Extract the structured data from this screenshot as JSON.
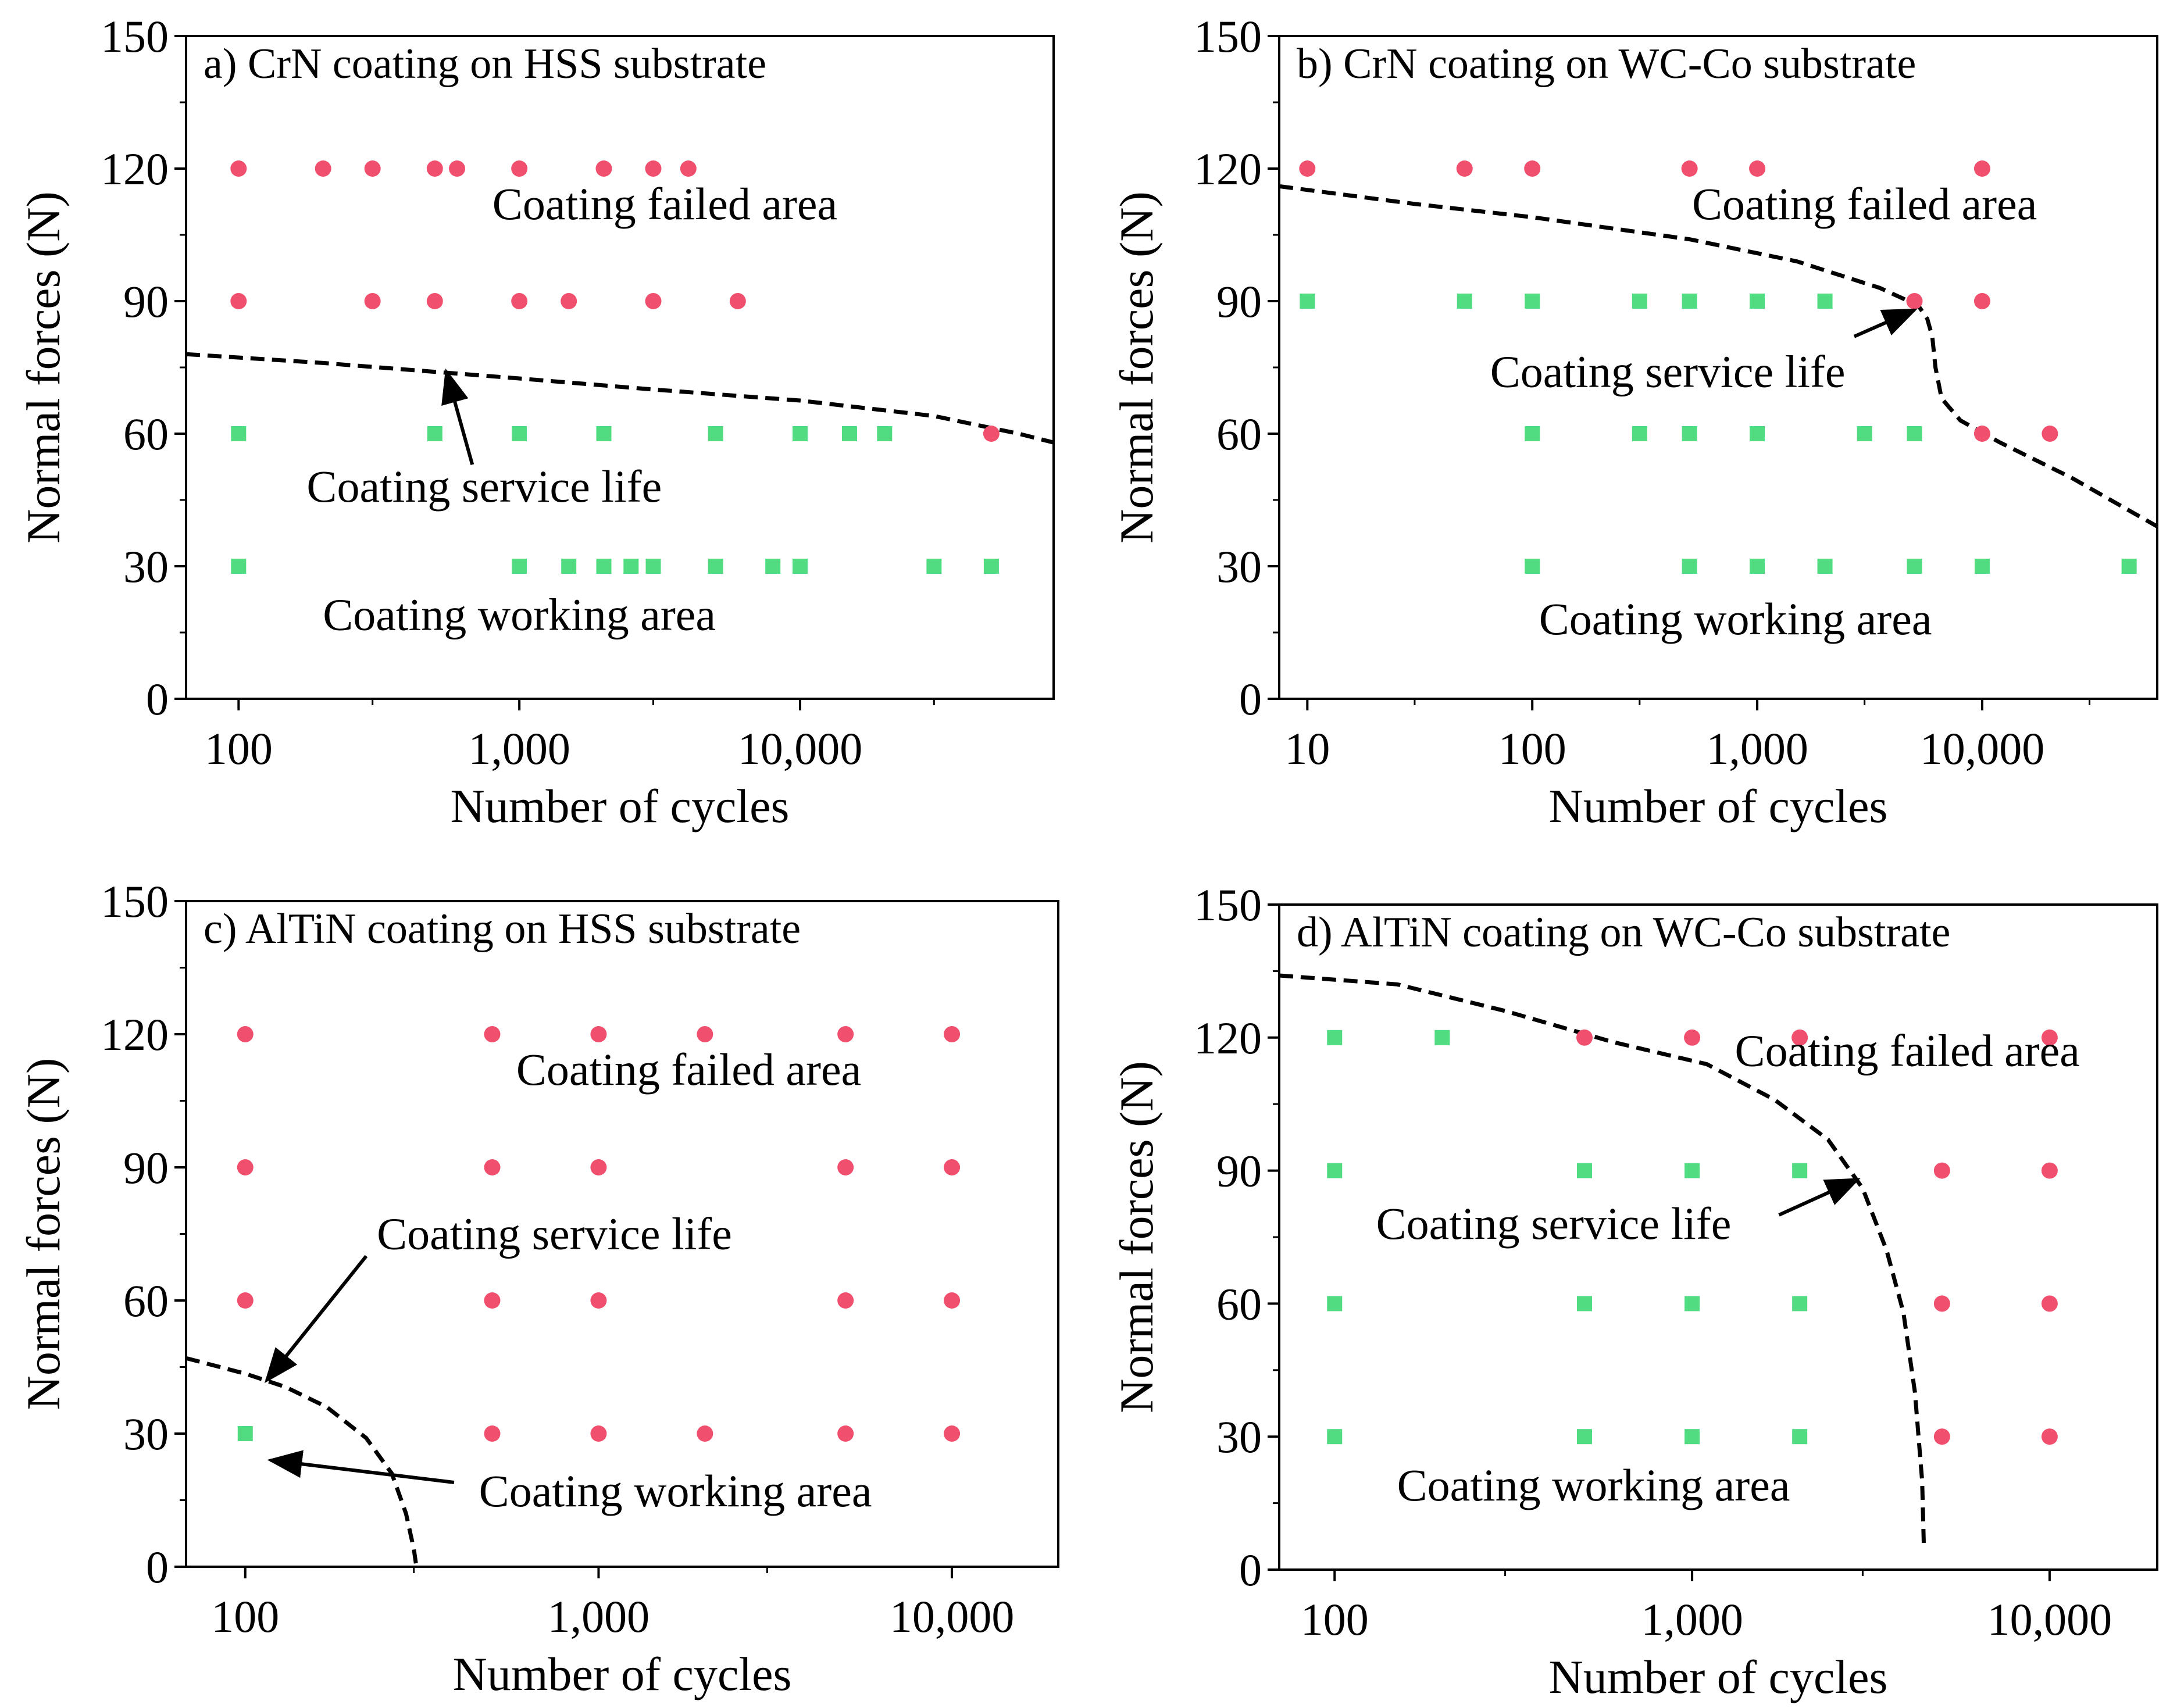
{
  "colors": {
    "failed": "#f0506e",
    "working": "#52dc82",
    "curve": "#000000"
  },
  "chart_data": [
    {
      "type": "scatter",
      "id": "a",
      "title": "a) CrN coating on HSS substrate",
      "xlabel": "Number of cycles",
      "ylabel": "Normal forces (N)",
      "xscale": "log",
      "xlim": [
        65,
        80000
      ],
      "ylim": [
        0,
        150
      ],
      "xticks": [
        {
          "value": 100,
          "label": "100"
        },
        {
          "value": 1000,
          "label": "1,000"
        },
        {
          "value": 10000,
          "label": "10,000"
        }
      ],
      "yticks": [
        {
          "value": 0,
          "label": "0"
        },
        {
          "value": 30,
          "label": "30"
        },
        {
          "value": 60,
          "label": "60"
        },
        {
          "value": 90,
          "label": "90"
        },
        {
          "value": 120,
          "label": "120"
        },
        {
          "value": 150,
          "label": "150"
        }
      ],
      "series": [
        {
          "name": "failed",
          "marker": "circle",
          "points": [
            [
              100,
              120
            ],
            [
              200,
              120
            ],
            [
              300,
              120
            ],
            [
              500,
              120
            ],
            [
              600,
              120
            ],
            [
              1000,
              120
            ],
            [
              2000,
              120
            ],
            [
              3000,
              120
            ],
            [
              4000,
              120
            ],
            [
              100,
              90
            ],
            [
              300,
              90
            ],
            [
              500,
              90
            ],
            [
              1000,
              90
            ],
            [
              1500,
              90
            ],
            [
              3000,
              90
            ],
            [
              6000,
              90
            ],
            [
              48000,
              60
            ]
          ]
        },
        {
          "name": "working",
          "marker": "square",
          "points": [
            [
              100,
              60
            ],
            [
              500,
              60
            ],
            [
              1000,
              60
            ],
            [
              2000,
              60
            ],
            [
              5000,
              60
            ],
            [
              10000,
              60
            ],
            [
              15000,
              60
            ],
            [
              20000,
              60
            ],
            [
              100,
              30
            ],
            [
              1000,
              30
            ],
            [
              1500,
              30
            ],
            [
              2000,
              30
            ],
            [
              2500,
              30
            ],
            [
              3000,
              30
            ],
            [
              5000,
              30
            ],
            [
              8000,
              30
            ],
            [
              10000,
              30
            ],
            [
              30000,
              30
            ],
            [
              48000,
              30
            ]
          ]
        }
      ],
      "curve": [
        [
          65,
          78
        ],
        [
          200,
          76
        ],
        [
          500,
          74
        ],
        [
          1000,
          72.5
        ],
        [
          3000,
          70
        ],
        [
          10000,
          67.5
        ],
        [
          30000,
          64
        ],
        [
          60000,
          60
        ],
        [
          80000,
          58
        ]
      ],
      "annotations": [
        {
          "text": "Coating failed area",
          "x": 3300,
          "y": 112
        },
        {
          "text": "Coating working area",
          "x": 1000,
          "y": 19
        },
        {
          "text": "Coating service life",
          "x": 750,
          "y": 48,
          "arrow_from": [
            680,
            53
          ],
          "arrow_to": [
            550,
            74
          ]
        }
      ]
    },
    {
      "type": "scatter",
      "id": "b",
      "title": "b) CrN coating on WC-Co substrate",
      "xlabel": "Number of cycles",
      "ylabel": "Normal forces (N)",
      "xscale": "log",
      "xlim": [
        7.5,
        60000
      ],
      "ylim": [
        0,
        150
      ],
      "xticks": [
        {
          "value": 10,
          "label": "10"
        },
        {
          "value": 100,
          "label": "100"
        },
        {
          "value": 1000,
          "label": "1,000"
        },
        {
          "value": 10000,
          "label": "10,000"
        }
      ],
      "yticks": [
        {
          "value": 0,
          "label": "0"
        },
        {
          "value": 30,
          "label": "30"
        },
        {
          "value": 60,
          "label": "60"
        },
        {
          "value": 90,
          "label": "90"
        },
        {
          "value": 120,
          "label": "120"
        },
        {
          "value": 150,
          "label": "150"
        }
      ],
      "series": [
        {
          "name": "failed",
          "marker": "circle",
          "points": [
            [
              10,
              120
            ],
            [
              50,
              120
            ],
            [
              100,
              120
            ],
            [
              500,
              120
            ],
            [
              1000,
              120
            ],
            [
              10000,
              120
            ],
            [
              5000,
              90
            ],
            [
              10000,
              90
            ],
            [
              10000,
              60
            ],
            [
              20000,
              60
            ]
          ]
        },
        {
          "name": "working",
          "marker": "square",
          "points": [
            [
              10,
              90
            ],
            [
              50,
              90
            ],
            [
              100,
              90
            ],
            [
              300,
              90
            ],
            [
              500,
              90
            ],
            [
              1000,
              90
            ],
            [
              2000,
              90
            ],
            [
              100,
              60
            ],
            [
              300,
              60
            ],
            [
              500,
              60
            ],
            [
              1000,
              60
            ],
            [
              3000,
              60
            ],
            [
              5000,
              60
            ],
            [
              100,
              30
            ],
            [
              500,
              30
            ],
            [
              1000,
              30
            ],
            [
              2000,
              30
            ],
            [
              5000,
              30
            ],
            [
              10000,
              30
            ],
            [
              45000,
              30
            ]
          ]
        }
      ],
      "curve": [
        [
          7.5,
          116
        ],
        [
          30,
          112
        ],
        [
          100,
          109
        ],
        [
          500,
          104
        ],
        [
          1500,
          99
        ],
        [
          3500,
          93
        ],
        [
          5200,
          89
        ],
        [
          5700,
          86
        ],
        [
          6000,
          82
        ],
        [
          6200,
          75
        ],
        [
          6600,
          68
        ],
        [
          8000,
          63
        ],
        [
          12000,
          58
        ],
        [
          25000,
          50
        ],
        [
          60000,
          39
        ]
      ],
      "annotations": [
        {
          "text": "Coating failed area",
          "x": 3000,
          "y": 112
        },
        {
          "text": "Coating working area",
          "x": 800,
          "y": 18
        },
        {
          "text": "Coating service life",
          "x": 400,
          "y": 74,
          "arrow_from": [
            2700,
            82
          ],
          "arrow_to": [
            5000,
            88
          ]
        }
      ]
    },
    {
      "type": "scatter",
      "id": "c",
      "title": "c) AlTiN coating on HSS substrate",
      "xlabel": "Number of cycles",
      "ylabel": "Normal forces (N)",
      "xscale": "log",
      "xlim": [
        68,
        20000
      ],
      "ylim": [
        0,
        150
      ],
      "xticks": [
        {
          "value": 100,
          "label": "100"
        },
        {
          "value": 1000,
          "label": "1,000"
        },
        {
          "value": 10000,
          "label": "10,000"
        }
      ],
      "yticks": [
        {
          "value": 0,
          "label": "0"
        },
        {
          "value": 30,
          "label": "30"
        },
        {
          "value": 60,
          "label": "60"
        },
        {
          "value": 90,
          "label": "90"
        },
        {
          "value": 120,
          "label": "120"
        },
        {
          "value": 150,
          "label": "150"
        }
      ],
      "series": [
        {
          "name": "failed",
          "marker": "circle",
          "points": [
            [
              100,
              120
            ],
            [
              500,
              120
            ],
            [
              1000,
              120
            ],
            [
              2000,
              120
            ],
            [
              5000,
              120
            ],
            [
              10000,
              120
            ],
            [
              100,
              90
            ],
            [
              500,
              90
            ],
            [
              1000,
              90
            ],
            [
              5000,
              90
            ],
            [
              10000,
              90
            ],
            [
              100,
              60
            ],
            [
              500,
              60
            ],
            [
              1000,
              60
            ],
            [
              5000,
              60
            ],
            [
              10000,
              60
            ],
            [
              500,
              30
            ],
            [
              1000,
              30
            ],
            [
              2000,
              30
            ],
            [
              5000,
              30
            ],
            [
              10000,
              30
            ]
          ]
        },
        {
          "name": "working",
          "marker": "square",
          "points": [
            [
              100,
              30
            ]
          ]
        }
      ],
      "curve": [
        [
          68,
          47
        ],
        [
          100,
          43.5
        ],
        [
          130,
          40.5
        ],
        [
          170,
          36
        ],
        [
          220,
          29
        ],
        [
          260,
          21
        ],
        [
          285,
          12
        ],
        [
          300,
          4
        ],
        [
          305,
          0
        ]
      ],
      "annotations": [
        {
          "text": "Coating failed area",
          "x": 1800,
          "y": 112
        },
        {
          "text": "Coating service life",
          "x": 750,
          "y": 75,
          "arrow_from": [
            220,
            70
          ],
          "arrow_to": [
            115,
            42
          ]
        },
        {
          "text": "Coating working area",
          "x": 1650,
          "y": 17,
          "arrow_from": [
            390,
            19
          ],
          "arrow_to": [
            118,
            24
          ]
        }
      ]
    },
    {
      "type": "scatter",
      "id": "d",
      "title": "d) AlTiN coating on WC-Co substrate",
      "xlabel": "Number of cycles",
      "ylabel": "Normal forces (N)",
      "xscale": "log",
      "xlim": [
        70,
        20000
      ],
      "ylim": [
        0,
        150
      ],
      "xticks": [
        {
          "value": 100,
          "label": "100"
        },
        {
          "value": 1000,
          "label": "1,000"
        },
        {
          "value": 10000,
          "label": "10,000"
        }
      ],
      "yticks": [
        {
          "value": 0,
          "label": "0"
        },
        {
          "value": 30,
          "label": "30"
        },
        {
          "value": 60,
          "label": "60"
        },
        {
          "value": 90,
          "label": "90"
        },
        {
          "value": 120,
          "label": "120"
        },
        {
          "value": 150,
          "label": "150"
        }
      ],
      "series": [
        {
          "name": "failed",
          "marker": "circle",
          "points": [
            [
              500,
              120
            ],
            [
              1000,
              120
            ],
            [
              2000,
              120
            ],
            [
              10000,
              120
            ],
            [
              5000,
              90
            ],
            [
              10000,
              90
            ],
            [
              5000,
              60
            ],
            [
              10000,
              60
            ],
            [
              5000,
              30
            ],
            [
              10000,
              30
            ]
          ]
        },
        {
          "name": "working",
          "marker": "square",
          "points": [
            [
              100,
              120
            ],
            [
              200,
              120
            ],
            [
              100,
              90
            ],
            [
              500,
              90
            ],
            [
              1000,
              90
            ],
            [
              2000,
              90
            ],
            [
              100,
              60
            ],
            [
              500,
              60
            ],
            [
              1000,
              60
            ],
            [
              2000,
              60
            ],
            [
              100,
              30
            ],
            [
              500,
              30
            ],
            [
              1000,
              30
            ],
            [
              2000,
              30
            ]
          ]
        }
      ],
      "curve": [
        [
          70,
          134
        ],
        [
          150,
          132
        ],
        [
          300,
          126
        ],
        [
          600,
          119
        ],
        [
          1100,
          114
        ],
        [
          1700,
          106
        ],
        [
          2400,
          97
        ],
        [
          3000,
          86
        ],
        [
          3500,
          72
        ],
        [
          3900,
          58
        ],
        [
          4200,
          40
        ],
        [
          4400,
          20
        ],
        [
          4450,
          5
        ]
      ],
      "annotations": [
        {
          "text": "Coating failed area",
          "x": 4000,
          "y": 117
        },
        {
          "text": "Coating working area",
          "x": 530,
          "y": 19
        },
        {
          "text": "Coating service life",
          "x": 410,
          "y": 78,
          "arrow_from": [
            1750,
            80
          ],
          "arrow_to": [
            2900,
            88
          ]
        }
      ]
    }
  ]
}
